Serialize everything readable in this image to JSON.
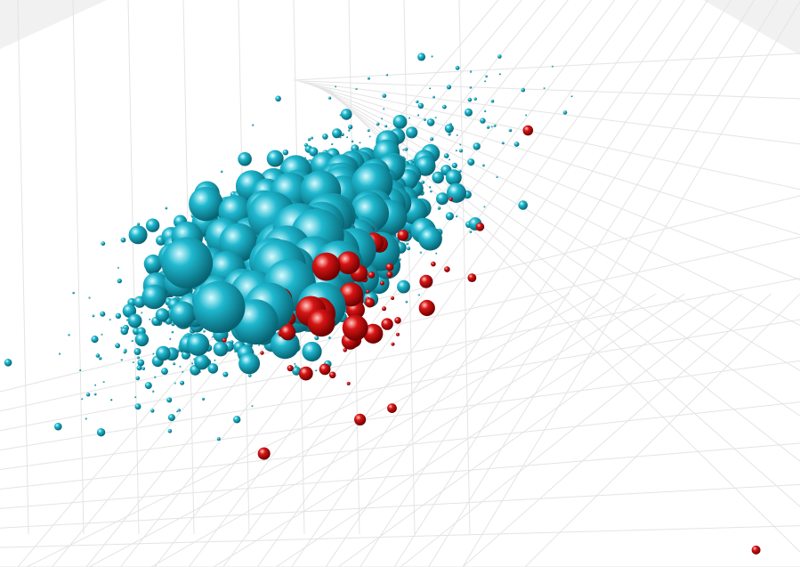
{
  "chart_data": {
    "type": "scatter",
    "projection": "3d",
    "marker": "sphere",
    "title": "",
    "xlabel": "",
    "ylabel": "",
    "zlabel": "",
    "tick_labels_visible": false,
    "grid": true,
    "legend": "none",
    "colors": {
      "primary": "#1fb8cf",
      "highlight": "#d81414",
      "grid": "#e4e4e4",
      "pane": "#f1f1f1",
      "background": "#ffffff"
    },
    "series": [
      {
        "color": "primary",
        "approx_point_count": 1300,
        "cloud_center": [
          0.37,
          0.43
        ],
        "cloud_spread": [
          0.11,
          0.12
        ],
        "correlation": -0.72,
        "size_range": [
          1,
          30
        ]
      },
      {
        "color": "highlight",
        "approx_point_count": 95,
        "cloud_center": [
          0.43,
          0.54
        ],
        "cloud_spread": [
          0.055,
          0.07
        ],
        "correlation": -0.55,
        "size_range": [
          2,
          22
        ],
        "outliers": [
          [
            0.66,
            0.23
          ],
          [
            0.6,
            0.4
          ],
          [
            0.59,
            0.49
          ],
          [
            0.49,
            0.72
          ],
          [
            0.45,
            0.74
          ],
          [
            0.33,
            0.8
          ],
          [
            0.945,
            0.97
          ]
        ]
      }
    ]
  }
}
